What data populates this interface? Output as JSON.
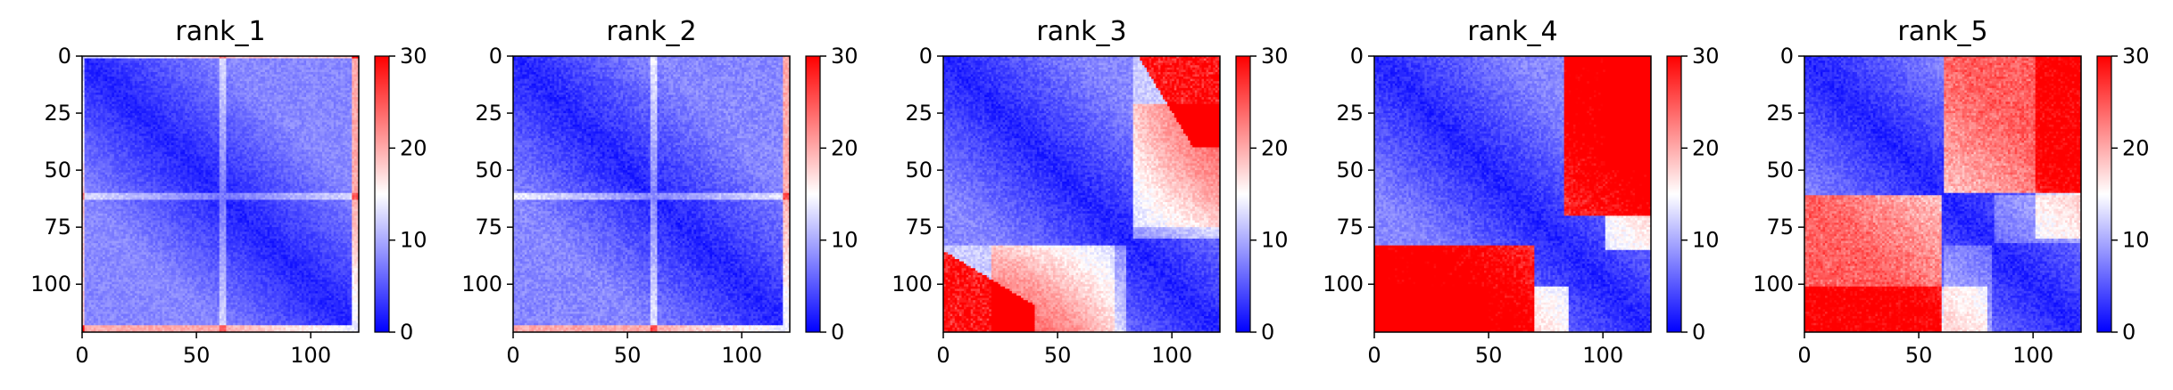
{
  "chart_data": [
    {
      "type": "heatmap",
      "title": "rank_1",
      "xlabel": "",
      "ylabel": "",
      "xlim": [
        0,
        121
      ],
      "ylim": [
        121,
        0
      ],
      "xticks": [
        0,
        50,
        100
      ],
      "yticks": [
        0,
        25,
        50,
        75,
        100
      ],
      "colorbar": {
        "cmap": "bwr",
        "range": [
          0,
          30
        ],
        "ticks": [
          0,
          10,
          20,
          30
        ]
      },
      "grid": false
    },
    {
      "type": "heatmap",
      "title": "rank_2",
      "xlabel": "",
      "ylabel": "",
      "xlim": [
        0,
        121
      ],
      "ylim": [
        121,
        0
      ],
      "xticks": [
        0,
        50,
        100
      ],
      "yticks": [
        0,
        25,
        50,
        75,
        100
      ],
      "colorbar": {
        "cmap": "bwr",
        "range": [
          0,
          30
        ],
        "ticks": [
          0,
          10,
          20,
          30
        ]
      },
      "grid": false
    },
    {
      "type": "heatmap",
      "title": "rank_3",
      "xlabel": "",
      "ylabel": "",
      "xlim": [
        0,
        121
      ],
      "ylim": [
        121,
        0
      ],
      "xticks": [
        0,
        50,
        100
      ],
      "yticks": [
        0,
        25,
        50,
        75,
        100
      ],
      "colorbar": {
        "cmap": "bwr",
        "range": [
          0,
          30
        ],
        "ticks": [
          0,
          10,
          20,
          30
        ]
      },
      "grid": false
    },
    {
      "type": "heatmap",
      "title": "rank_4",
      "xlabel": "",
      "ylabel": "",
      "xlim": [
        0,
        121
      ],
      "ylim": [
        121,
        0
      ],
      "xticks": [
        0,
        50,
        100
      ],
      "yticks": [
        0,
        25,
        50,
        75,
        100
      ],
      "colorbar": {
        "cmap": "bwr",
        "range": [
          0,
          30
        ],
        "ticks": [
          0,
          10,
          20,
          30
        ]
      },
      "grid": false
    },
    {
      "type": "heatmap",
      "title": "rank_5",
      "xlabel": "",
      "ylabel": "",
      "xlim": [
        0,
        121
      ],
      "ylim": [
        121,
        0
      ],
      "xticks": [
        0,
        50,
        100
      ],
      "yticks": [
        0,
        25,
        50,
        75,
        100
      ],
      "colorbar": {
        "cmap": "bwr",
        "range": [
          0,
          30
        ],
        "ticks": [
          0,
          10,
          20,
          30
        ]
      },
      "grid": false
    }
  ]
}
